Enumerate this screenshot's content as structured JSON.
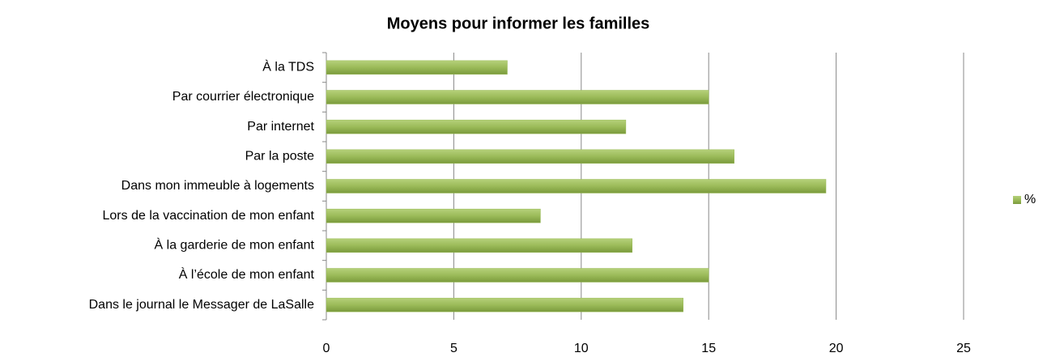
{
  "chart_data": {
    "type": "bar",
    "orientation": "horizontal",
    "title": "Moyens pour informer les familles",
    "categories": [
      "À la TDS",
      "Par courrier électronique",
      "Par internet",
      "Par la poste",
      "Dans mon immeuble à logements",
      "Lors de la vaccination de mon enfant",
      "À la garderie de mon enfant",
      "À l’école de mon enfant",
      "Dans le journal le Messager de LaSalle"
    ],
    "series": [
      {
        "name": "%",
        "color": "#9bbb59",
        "values": [
          7.1,
          15,
          11.75,
          16,
          19.6,
          8.4,
          12,
          15,
          14
        ]
      }
    ],
    "xlim": [
      0,
      25
    ],
    "xticks": [
      0,
      5,
      10,
      15,
      20,
      25
    ],
    "grid": true,
    "legend": "right"
  }
}
